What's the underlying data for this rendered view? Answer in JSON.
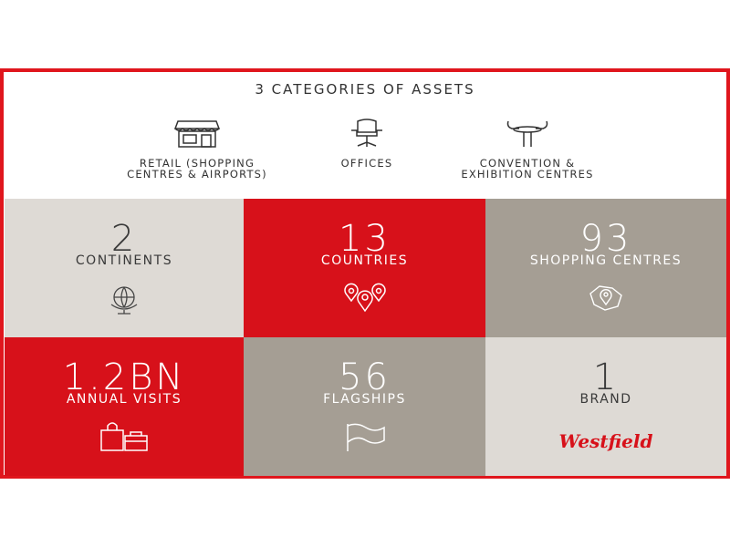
{
  "header": {
    "title": "3 CATEGORIES OF ASSETS"
  },
  "categories": [
    {
      "lines": [
        "RETAIL (SHOPPING",
        "CENTRES & AIRPORTS)"
      ]
    },
    {
      "lines": [
        "OFFICES"
      ]
    },
    {
      "lines": [
        "CONVENTION &",
        "EXHIBITION CENTRES"
      ]
    }
  ],
  "stats": [
    {
      "value": "2",
      "label": "CONTINENTS"
    },
    {
      "value": "13",
      "label": "COUNTRIES"
    },
    {
      "value": "93",
      "label": "SHOPPING CENTRES"
    },
    {
      "value": "1.2BN",
      "label": "ANNUAL VISITS"
    },
    {
      "value": "56",
      "label": "FLAGSHIPS"
    },
    {
      "value": "1",
      "label": "BRAND"
    }
  ],
  "brand_logo": "Westfield"
}
